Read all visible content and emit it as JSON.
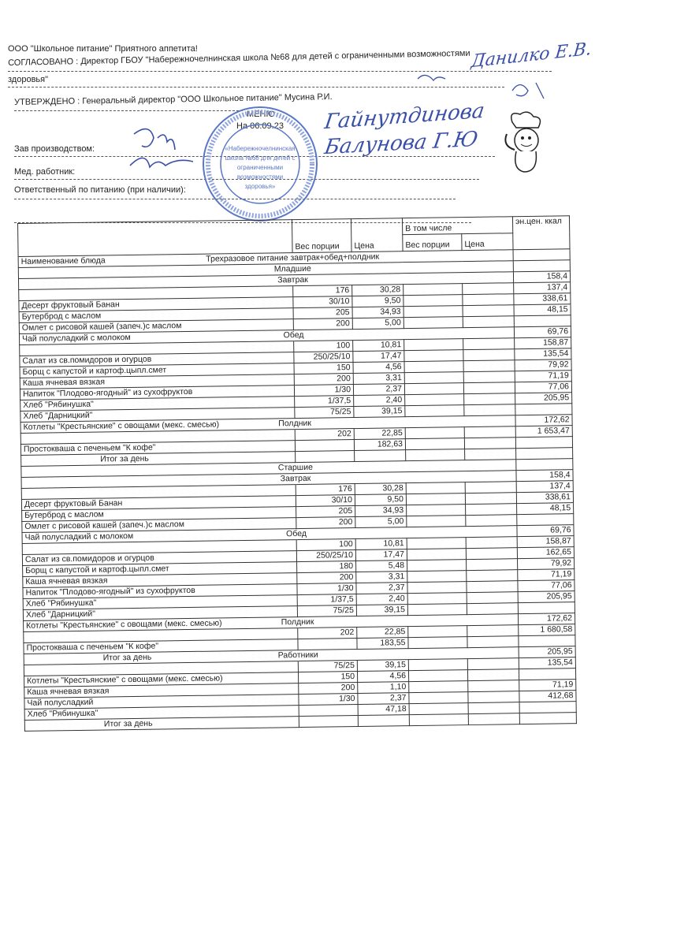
{
  "header": {
    "company_line": "ООО \"Школьное питание\" Приятного аппетита!",
    "agreed_line": "СОГЛАСОВАНО : Директор ГБОУ \"Набережночелнинская школа №68 для детей с ограниченными возможностями",
    "agreed_line_cont": "здоровья\"",
    "approved_line": "УТВЕРЖДЕНО : Генеральный директор \"ООО Школьное питание\" Мусина Р.И.",
    "menu_title": "МЕНЮ",
    "menu_date": "На 06.09.23",
    "production_head_label": "Зав производством:",
    "medic_label": "Мед. работник:",
    "responsible_label": "Ответственный по питанию (при наличии):"
  },
  "stamp": {
    "text": "Набережночелнинская школа №68 для детей с ограниченными возможностями здоровья",
    "ink_color": "#5a78c8"
  },
  "signatures": {
    "top_right": "Данилко Е.В.",
    "middle_right_1": "Гайнутдинова",
    "middle_right_2": "Балунова Г.Ю",
    "ink_color": "#3a4fa8"
  },
  "table": {
    "columns": {
      "name": "Наименование блюда",
      "weight": "Вес порции",
      "price": "Цена",
      "including": "В том числе",
      "inc_weight": "Вес порции",
      "inc_price": "Цена",
      "kcal": "эн.цен. ккал"
    },
    "rows": [
      {
        "name": "Наименование блюда",
        "sec": "Трехразовое питание завтрак+обед+полдник",
        "w": "",
        "p": "",
        "k": ""
      },
      {
        "name": "",
        "sec": "Младшие",
        "w": "",
        "p": "",
        "k": ""
      },
      {
        "name": "",
        "sec": "Завтрак",
        "w": "",
        "p": "",
        "k": "158,4"
      },
      {
        "name": "",
        "sec": "",
        "w": "176",
        "p": "30,28",
        "k": "137,4"
      },
      {
        "name": "Десерт фруктовый Банан",
        "sec": "",
        "w": "30/10",
        "p": "9,50",
        "k": "338,61"
      },
      {
        "name": "Бутерброд с маслом",
        "sec": "",
        "w": "205",
        "p": "34,93",
        "k": "48,15"
      },
      {
        "name": "Омлет с рисовой кашей (запеч.)с маслом",
        "sec": "",
        "w": "200",
        "p": "5,00",
        "k": ""
      },
      {
        "name": "Чай полусладкий с молоком",
        "sec": "Обед",
        "w": "",
        "p": "",
        "k": "69,76"
      },
      {
        "name": "",
        "sec": "",
        "w": "100",
        "p": "10,81",
        "k": "158,87"
      },
      {
        "name": "Салат из св.помидоров и огурцов",
        "sec": "",
        "w": "250/25/10",
        "p": "17,47",
        "k": "135,54"
      },
      {
        "name": "Борщ с капустой и картоф.цыпл.смет",
        "sec": "",
        "w": "150",
        "p": "4,56",
        "k": "79,92"
      },
      {
        "name": "Каша ячневая вязкая",
        "sec": "",
        "w": "200",
        "p": "3,31",
        "k": "71,19"
      },
      {
        "name": "Напиток \"Плодово-ягодный\" из сухофруктов",
        "sec": "",
        "w": "1/30",
        "p": "2,37",
        "k": "77,06"
      },
      {
        "name": "Хлеб \"Рябинушка\"",
        "sec": "",
        "w": "1/37,5",
        "p": "2,40",
        "k": "205,95"
      },
      {
        "name": "Хлеб \"Дарницкий\"",
        "sec": "",
        "w": "75/25",
        "p": "39,15",
        "k": ""
      },
      {
        "name": "Котлеты \"Крестьянские\" с овощами (мекс. смесью)",
        "sec": "Полдник",
        "w": "",
        "p": "",
        "k": "172,62"
      },
      {
        "name": "",
        "sec": "",
        "w": "202",
        "p": "22,85",
        "k": "1 653,47"
      },
      {
        "name": "Простокваша с печеньем \"К кофе\"",
        "sec": "",
        "w": "",
        "p": "182,63",
        "k": ""
      },
      {
        "name": "Итог за день",
        "sec": "",
        "w": "",
        "p": "",
        "k": ""
      },
      {
        "name": "",
        "sec": "Старшие",
        "w": "",
        "p": "",
        "k": ""
      },
      {
        "name": "",
        "sec": "Завтрак",
        "w": "",
        "p": "",
        "k": "158,4"
      },
      {
        "name": "",
        "sec": "",
        "w": "176",
        "p": "30,28",
        "k": "137,4"
      },
      {
        "name": "Десерт фруктовый Банан",
        "sec": "",
        "w": "30/10",
        "p": "9,50",
        "k": "338,61"
      },
      {
        "name": "Бутерброд с маслом",
        "sec": "",
        "w": "205",
        "p": "34,93",
        "k": "48,15"
      },
      {
        "name": "Омлет с рисовой кашей (запеч.)с маслом",
        "sec": "",
        "w": "200",
        "p": "5,00",
        "k": ""
      },
      {
        "name": "Чай полусладкий с молоком",
        "sec": "Обед",
        "w": "",
        "p": "",
        "k": "69,76"
      },
      {
        "name": "",
        "sec": "",
        "w": "100",
        "p": "10,81",
        "k": "158,87"
      },
      {
        "name": "Салат из св.помидоров и огурцов",
        "sec": "",
        "w": "250/25/10",
        "p": "17,47",
        "k": "162,65"
      },
      {
        "name": "Борщ с капустой и картоф.цыпл.смет",
        "sec": "",
        "w": "180",
        "p": "5,48",
        "k": "79,92"
      },
      {
        "name": "Каша ячневая вязкая",
        "sec": "",
        "w": "200",
        "p": "3,31",
        "k": "71,19"
      },
      {
        "name": "Напиток \"Плодово-ягодный\" из сухофруктов",
        "sec": "",
        "w": "1/30",
        "p": "2,37",
        "k": "77,06"
      },
      {
        "name": "Хлеб \"Рябинушка\"",
        "sec": "",
        "w": "1/37,5",
        "p": "2,40",
        "k": "205,95"
      },
      {
        "name": "Хлеб \"Дарницкий\"",
        "sec": "",
        "w": "75/25",
        "p": "39,15",
        "k": ""
      },
      {
        "name": "Котлеты \"Крестьянские\" с овощами (мекс. смесью)",
        "sec": "Полдник",
        "w": "",
        "p": "",
        "k": "172,62"
      },
      {
        "name": "",
        "sec": "",
        "w": "202",
        "p": "22,85",
        "k": "1 680,58"
      },
      {
        "name": "Простокваша с печеньем \"К кофе\"",
        "sec": "",
        "w": "",
        "p": "183,55",
        "k": ""
      },
      {
        "name": "Итог за день",
        "sec": "Работники",
        "w": "",
        "p": "",
        "k": "205,95"
      },
      {
        "name": "",
        "sec": "",
        "w": "75/25",
        "p": "39,15",
        "k": "135,54"
      },
      {
        "name": "Котлеты \"Крестьянские\" с овощами (мекс. смесью)",
        "sec": "",
        "w": "150",
        "p": "4,56",
        "k": ""
      },
      {
        "name": "Каша ячневая вязкая",
        "sec": "",
        "w": "200",
        "p": "1,10",
        "k": "71,19"
      },
      {
        "name": "Чай полусладкий",
        "sec": "",
        "w": "1/30",
        "p": "2,37",
        "k": "412,68"
      },
      {
        "name": "Хлеб \"Рябинушка\"",
        "sec": "",
        "w": "",
        "p": "47,18",
        "k": ""
      },
      {
        "name": "Итог за день",
        "sec": "",
        "w": "",
        "p": "",
        "k": ""
      }
    ]
  }
}
